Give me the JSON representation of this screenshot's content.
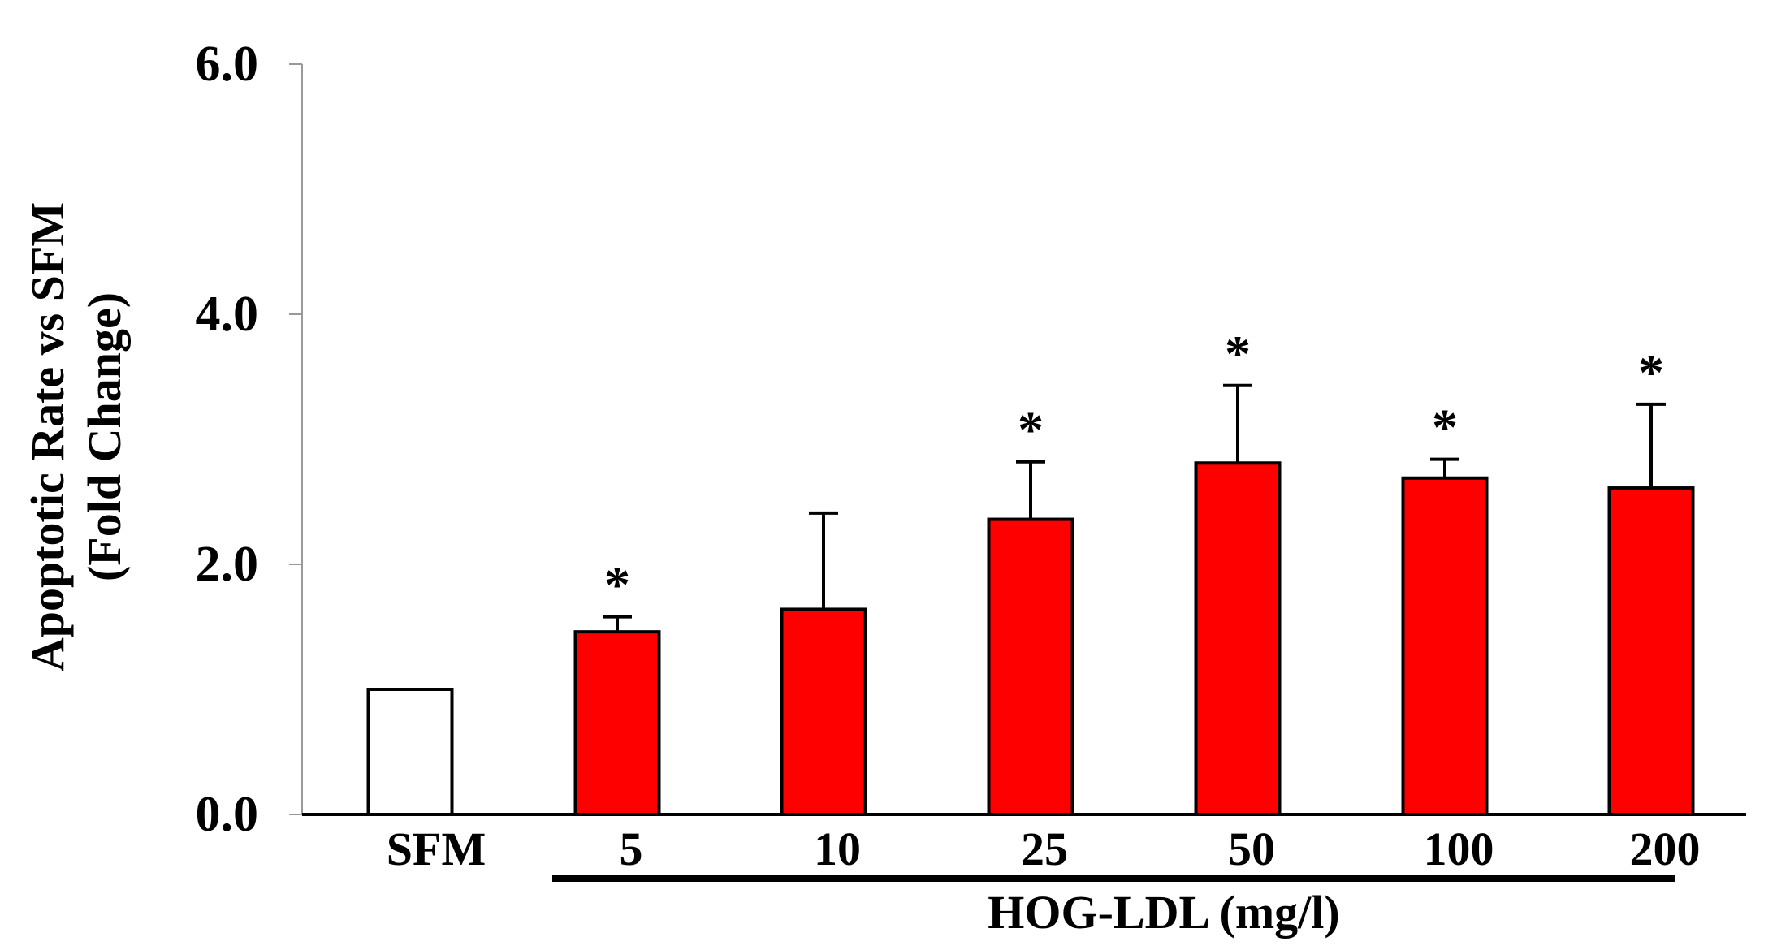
{
  "chart_data": {
    "type": "bar",
    "title": "",
    "ylabel_line1": "Apoptotic Rate vs SFM",
    "ylabel_line2": "(Fold Change)",
    "xlabel": "HOG-LDL (mg/l)",
    "ylim": [
      0,
      6
    ],
    "yticks": [
      "0.0",
      "2.0",
      "4.0",
      "6.0"
    ],
    "ytick_values": [
      0,
      2,
      4,
      6
    ],
    "categories": [
      "SFM",
      "5",
      "10",
      "25",
      "50",
      "100",
      "200"
    ],
    "values": [
      1.0,
      1.46,
      1.64,
      2.36,
      2.81,
      2.69,
      2.61
    ],
    "errors": [
      0.0,
      0.12,
      0.77,
      0.46,
      0.62,
      0.15,
      0.67
    ],
    "significant": [
      false,
      true,
      false,
      true,
      true,
      true,
      true
    ],
    "significance_marker": "*",
    "colors": {
      "control_fill": "#ffffff",
      "treatment_fill": "#ff0000",
      "stroke": "#000000",
      "axis_minor": "#999999"
    },
    "grid": false
  }
}
